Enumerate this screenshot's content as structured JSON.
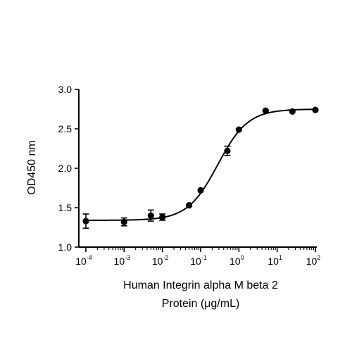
{
  "chart_data": {
    "type": "scatter",
    "title": "",
    "ylabel": "OD450 nm",
    "xlabel_lines": [
      "Human Integrin alpha M beta 2",
      "Protein (μg/mL)"
    ],
    "x_scale": "log",
    "xlim": [
      0.0001,
      100
    ],
    "ylim": [
      1.0,
      3.0
    ],
    "y_ticks": [
      1.0,
      1.5,
      2.0,
      2.5,
      3.0
    ],
    "y_tick_labels": [
      "1.0",
      "1.5",
      "2.0",
      "2.5",
      "3.0"
    ],
    "x_ticks": [
      {
        "base": "10",
        "exp": "-4"
      },
      {
        "base": "10",
        "exp": "-3"
      },
      {
        "base": "10",
        "exp": "-2"
      },
      {
        "base": "10",
        "exp": "-1"
      },
      {
        "base": "10",
        "exp": "0"
      },
      {
        "base": "10",
        "exp": "1"
      },
      {
        "base": "10",
        "exp": "2"
      }
    ],
    "x_tick_values": [
      0.0001,
      0.001,
      0.01,
      0.1,
      1,
      10,
      100
    ],
    "grid": false,
    "series": [
      {
        "points": [
          {
            "x": 0.0001,
            "y": 1.33,
            "err": 0.09
          },
          {
            "x": 0.001,
            "y": 1.32,
            "err": 0.05
          },
          {
            "x": 0.005,
            "y": 1.4,
            "err": 0.07
          },
          {
            "x": 0.01,
            "y": 1.38,
            "err": 0.04
          },
          {
            "x": 0.05,
            "y": 1.53,
            "err": 0.0
          },
          {
            "x": 0.1,
            "y": 1.72,
            "err": 0.0
          },
          {
            "x": 0.5,
            "y": 2.22,
            "err": 0.06
          },
          {
            "x": 1,
            "y": 2.49,
            "err": 0.0
          },
          {
            "x": 5,
            "y": 2.73,
            "err": 0.0
          },
          {
            "x": 25,
            "y": 2.72,
            "err": 0.0
          },
          {
            "x": 100,
            "y": 2.74,
            "err": 0.0
          }
        ]
      }
    ],
    "fit": {
      "model": "4PL",
      "bottom": 1.34,
      "top": 2.75,
      "ec50": 0.28,
      "hill": 1.1
    }
  }
}
